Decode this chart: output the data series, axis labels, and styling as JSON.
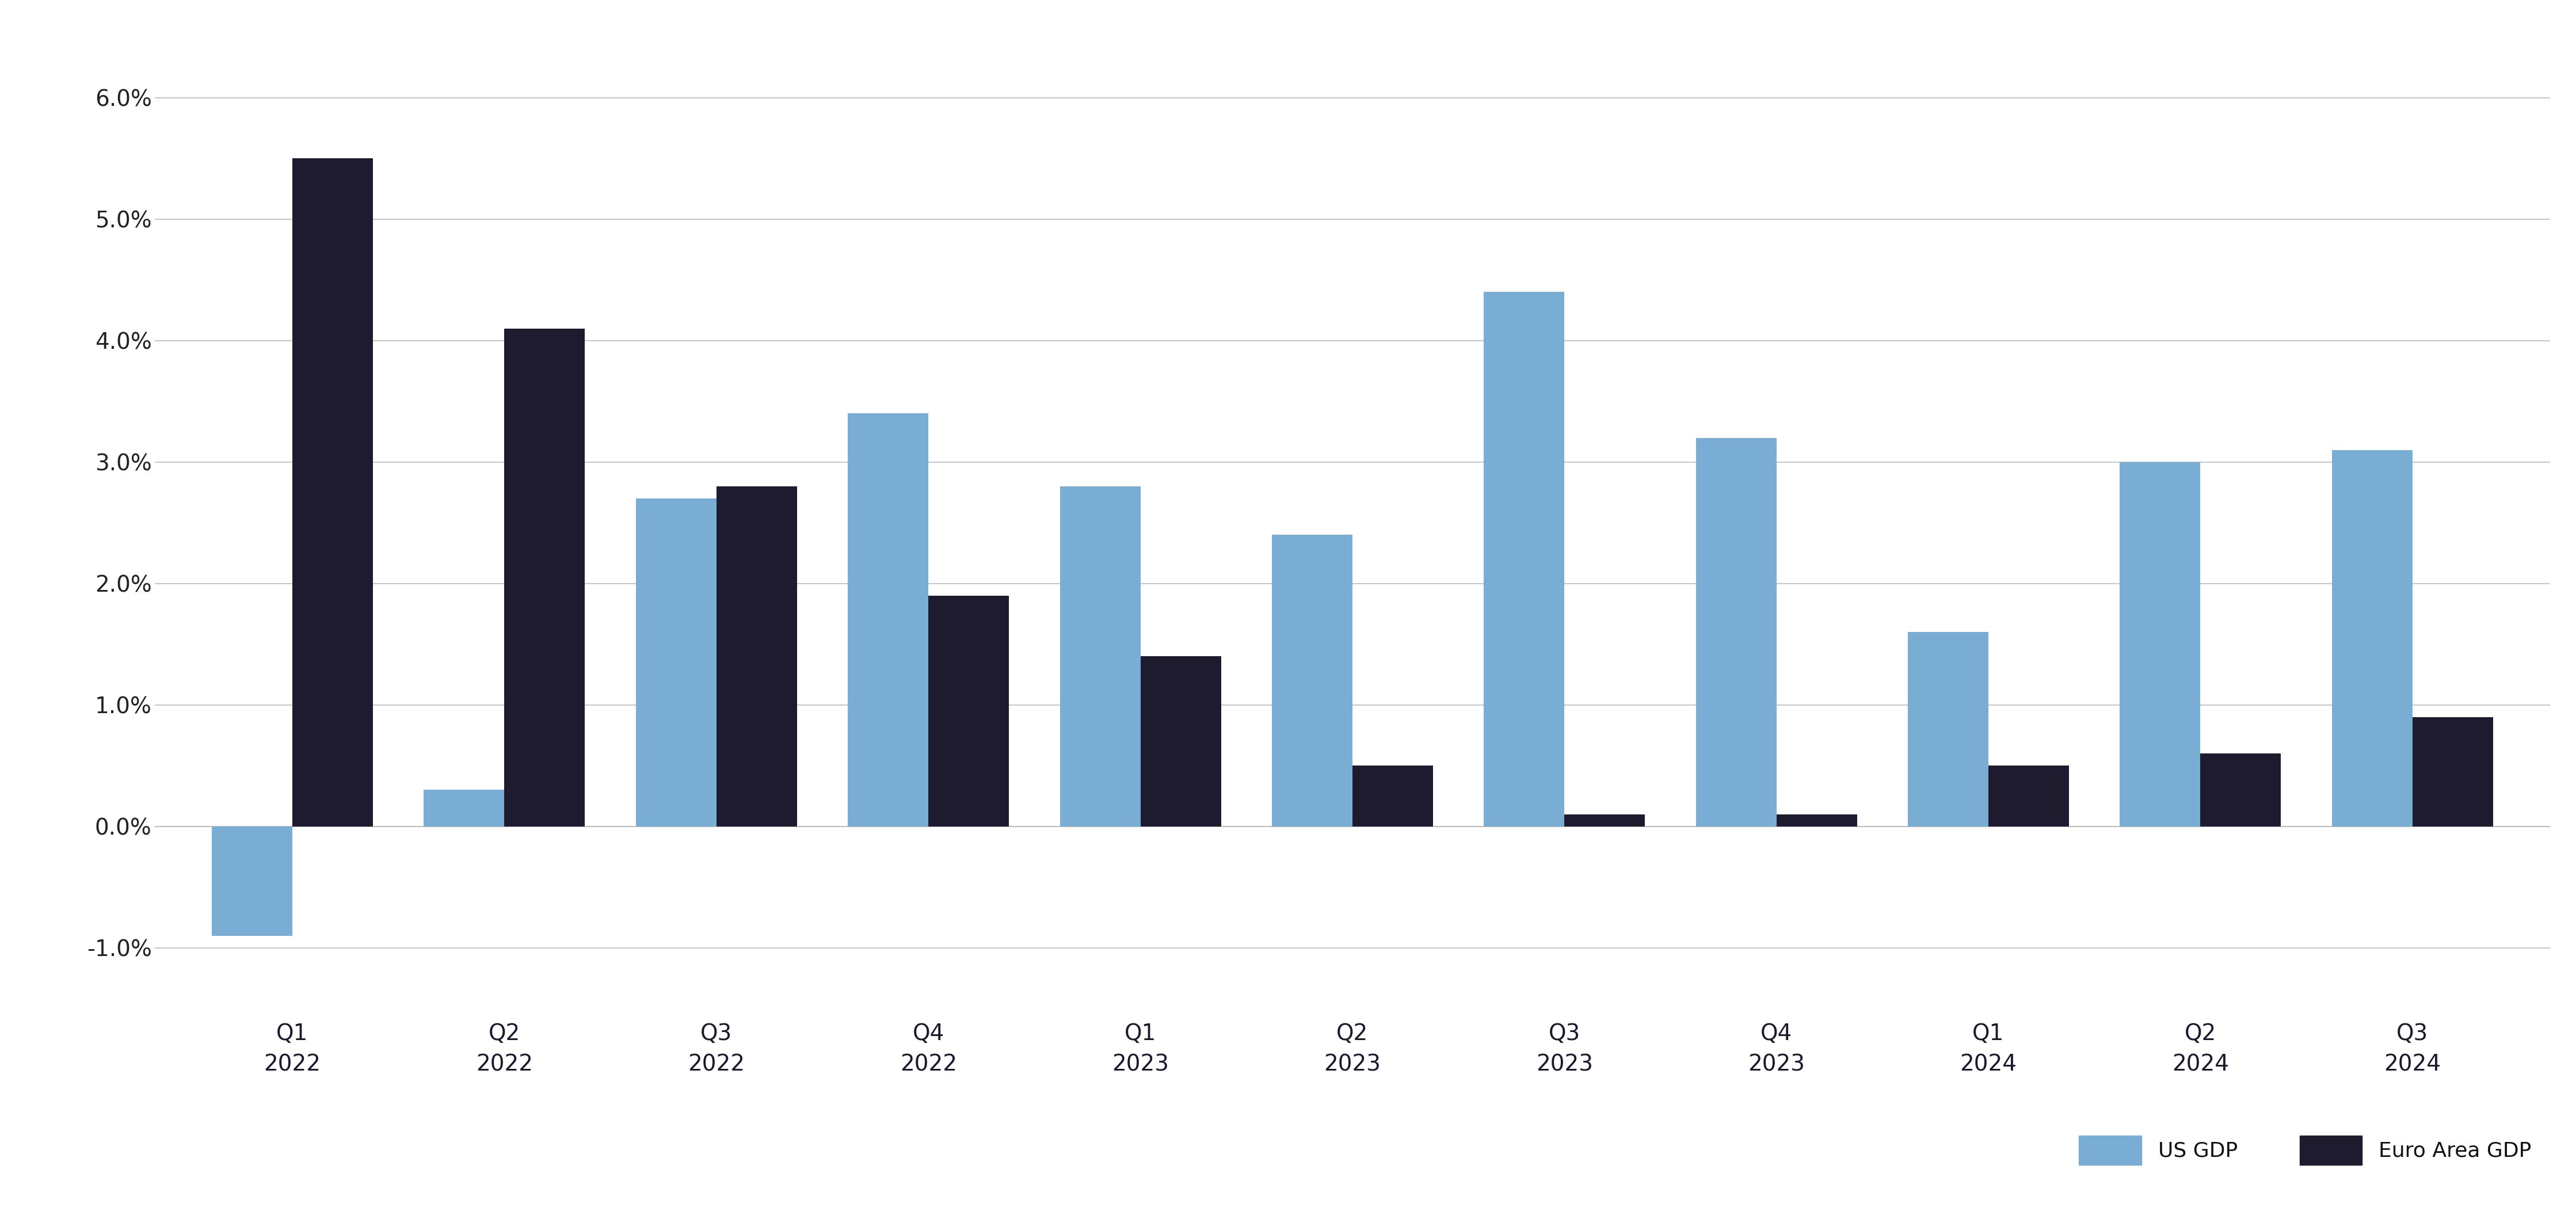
{
  "categories": [
    "Q1\n2022",
    "Q2\n2022",
    "Q3\n2022",
    "Q4\n2022",
    "Q1\n2023",
    "Q2\n2023",
    "Q3\n2023",
    "Q4\n2023",
    "Q1\n2024",
    "Q2\n2024",
    "Q3\n2024"
  ],
  "us_gdp": [
    -0.009,
    0.003,
    0.027,
    0.034,
    0.028,
    0.024,
    0.044,
    0.032,
    0.016,
    0.03,
    0.031
  ],
  "euro_gdp": [
    0.055,
    0.041,
    0.028,
    0.019,
    0.014,
    0.005,
    0.001,
    0.001,
    0.005,
    0.006,
    0.009
  ],
  "us_color": "#7aadd4",
  "euro_color": "#1e1b2e",
  "background_color": "#ffffff",
  "grid_color": "#c8c8c8",
  "ylim": [
    -0.015,
    0.065
  ],
  "yticks": [
    -0.01,
    0.0,
    0.01,
    0.02,
    0.03,
    0.04,
    0.05,
    0.06
  ],
  "legend_us": "US GDP",
  "legend_euro": "Euro Area GDP",
  "bar_width": 0.38,
  "tick_fontsize": 28,
  "legend_fontsize": 26
}
